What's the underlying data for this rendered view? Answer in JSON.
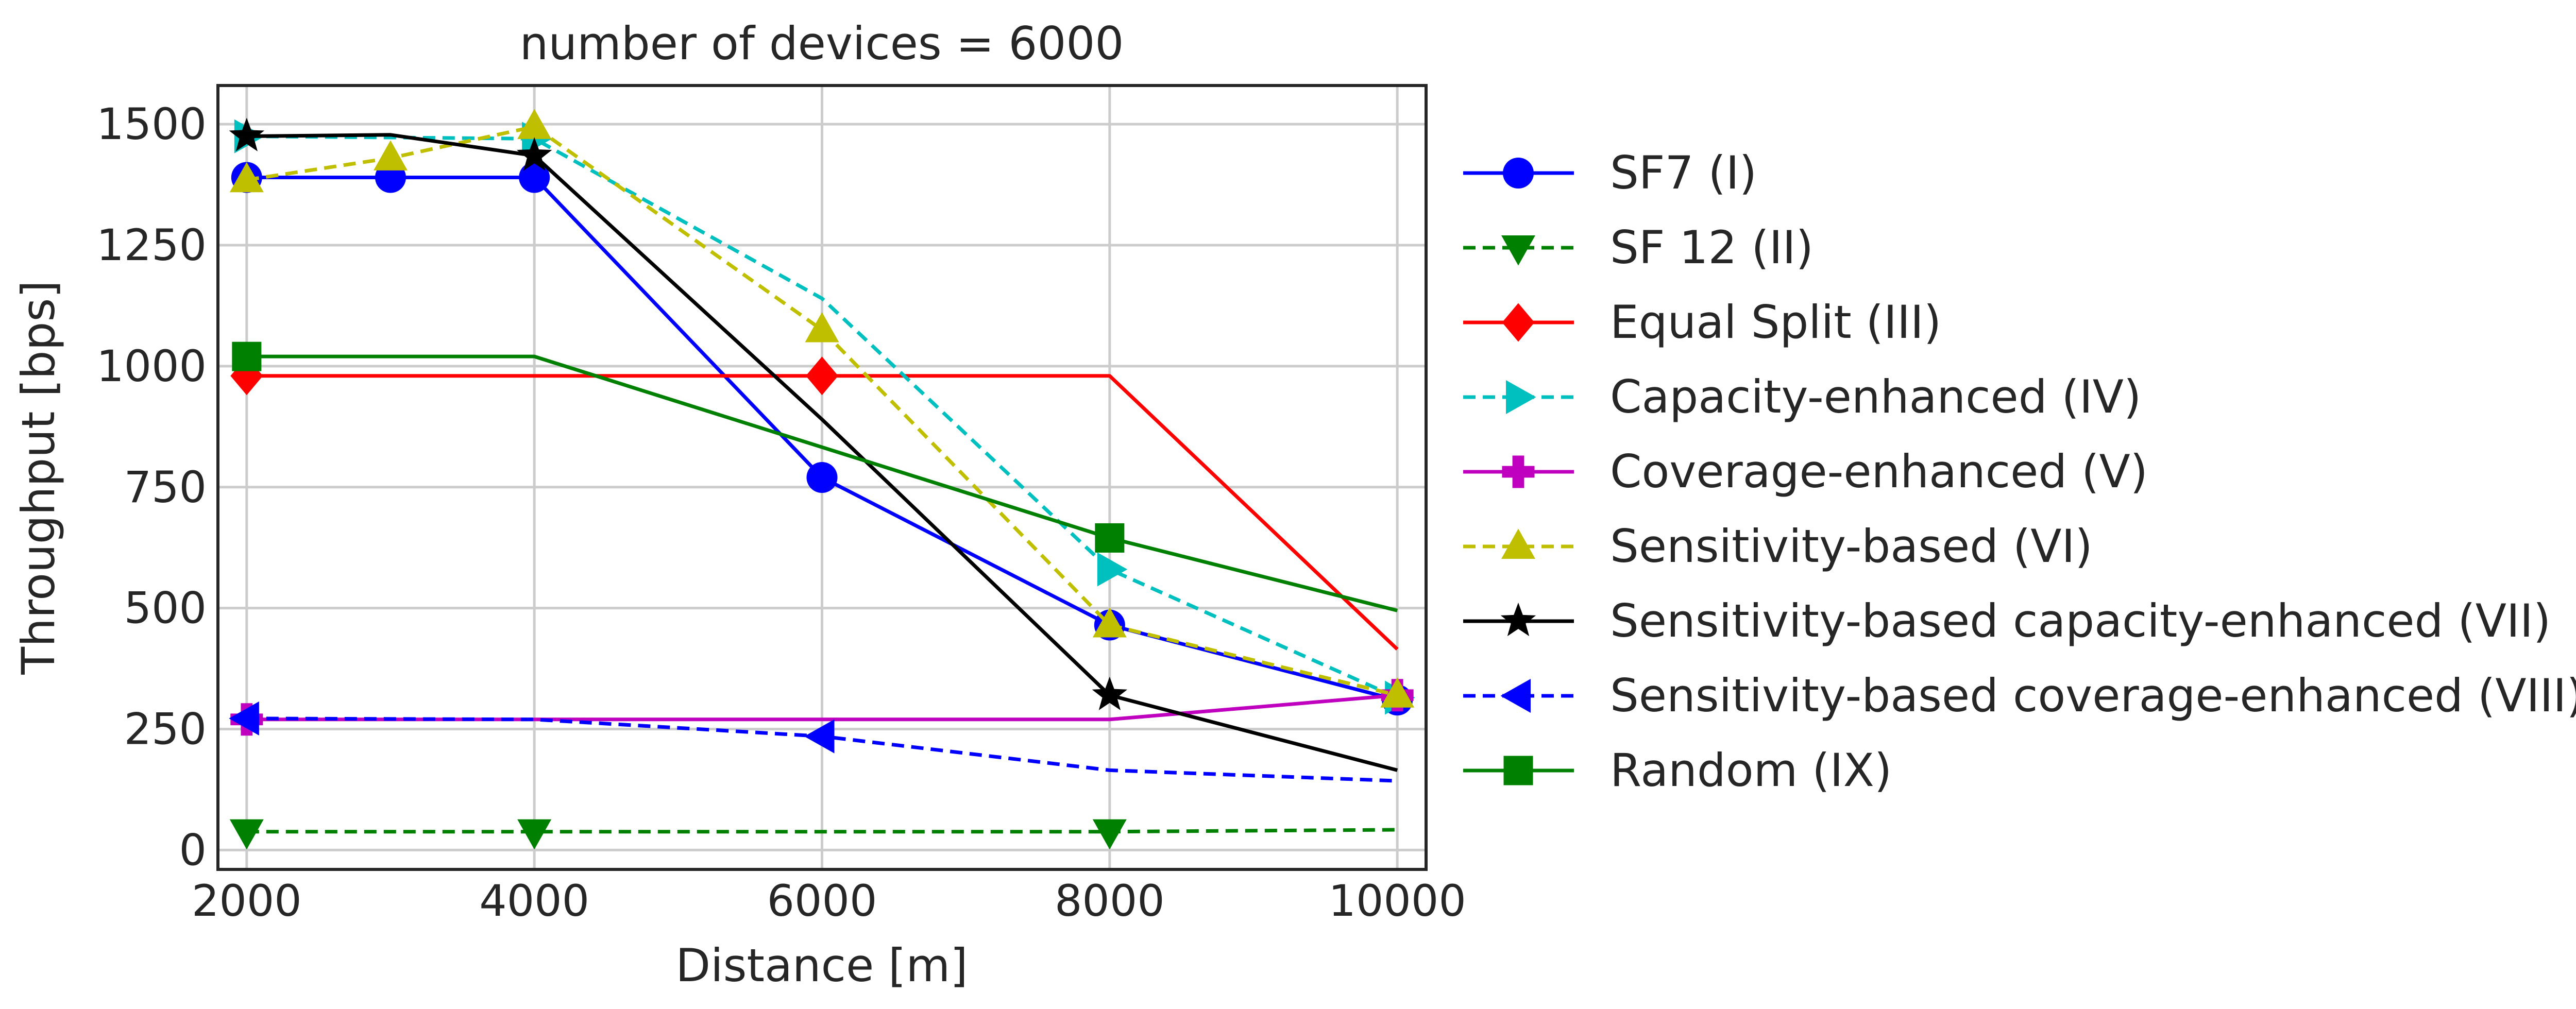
{
  "chart_data": {
    "type": "line",
    "title": "number of devices = 6000",
    "xlabel": "Distance [m]",
    "ylabel": "Throughput [bps]",
    "xlim": [
      1800,
      10200
    ],
    "ylim": [
      -40,
      1580
    ],
    "xticks": [
      2000,
      4000,
      6000,
      8000,
      10000
    ],
    "yticks": [
      0,
      250,
      500,
      750,
      1000,
      1250,
      1500
    ],
    "grid": true,
    "legend_position": "outside-right",
    "series": [
      {
        "name": "SF7 (I)",
        "color": "#0000ff",
        "dash": "solid",
        "marker": "circle",
        "points": [
          [
            2000,
            1390
          ],
          [
            3000,
            1390
          ],
          [
            4000,
            1390
          ],
          [
            6000,
            770
          ],
          [
            8000,
            465
          ],
          [
            10000,
            310
          ]
        ]
      },
      {
        "name": "SF 12 (II)",
        "color": "#008000",
        "dash": "dashed",
        "marker": "triangle-down",
        "points": [
          [
            2000,
            38
          ],
          [
            4000,
            38
          ],
          [
            8000,
            38
          ],
          [
            10000,
            42
          ]
        ]
      },
      {
        "name": "Equal Split (III)",
        "color": "#ff0000",
        "dash": "solid",
        "marker": "diamond",
        "points": [
          [
            2000,
            980
          ],
          [
            4000,
            980
          ],
          [
            6000,
            980
          ],
          [
            8000,
            980
          ],
          [
            10000,
            415
          ]
        ]
      },
      {
        "name": "Capacity-enhanced (IV)",
        "color": "#00bfbf",
        "dash": "dashed",
        "marker": "triangle-right",
        "points": [
          [
            2000,
            1475
          ],
          [
            4000,
            1470
          ],
          [
            6000,
            1140
          ],
          [
            8000,
            580
          ],
          [
            10000,
            315
          ]
        ]
      },
      {
        "name": "Coverage-enhanced (V)",
        "color": "#bf00bf",
        "dash": "solid",
        "marker": "plus",
        "points": [
          [
            2000,
            270
          ],
          [
            6000,
            270
          ],
          [
            8000,
            270
          ],
          [
            10000,
            320
          ]
        ]
      },
      {
        "name": "Sensitivity-based (VI)",
        "color": "#bfbf00",
        "dash": "dashed",
        "marker": "triangle-up",
        "points": [
          [
            2000,
            1385
          ],
          [
            3000,
            1430
          ],
          [
            4000,
            1495
          ],
          [
            6000,
            1075
          ],
          [
            8000,
            465
          ],
          [
            10000,
            320
          ]
        ]
      },
      {
        "name": "Sensitivity-based capacity-enhanced (VII)",
        "color": "#000000",
        "dash": "solid",
        "marker": "star",
        "points": [
          [
            2000,
            1475
          ],
          [
            3000,
            1478
          ],
          [
            4000,
            1435
          ],
          [
            6000,
            890
          ],
          [
            8000,
            320
          ],
          [
            10000,
            165
          ]
        ]
      },
      {
        "name": "Sensitivity-based coverage-enhanced (VIII)",
        "color": "#0000ff",
        "dash": "dashed",
        "marker": "triangle-left",
        "points": [
          [
            2000,
            272
          ],
          [
            4000,
            270
          ],
          [
            6000,
            235
          ],
          [
            8000,
            165
          ],
          [
            10000,
            143
          ]
        ]
      },
      {
        "name": "Random (IX)",
        "color": "#008000",
        "dash": "solid",
        "marker": "square",
        "points": [
          [
            2000,
            1020
          ],
          [
            4000,
            1020
          ],
          [
            8000,
            645
          ],
          [
            10000,
            495
          ]
        ]
      }
    ],
    "markers_shown": {
      "SF7 (I)": [
        2000,
        3000,
        4000,
        6000,
        8000,
        10000
      ],
      "SF 12 (II)": [
        2000,
        4000,
        8000
      ],
      "Equal Split (III)": [
        2000,
        6000
      ],
      "Capacity-enhanced (IV)": [
        2000,
        4000,
        8000,
        10000
      ],
      "Coverage-enhanced (V)": [
        2000,
        10000
      ],
      "Sensitivity-based (VI)": [
        2000,
        3000,
        4000,
        6000,
        8000,
        10000
      ],
      "Sensitivity-based capacity-enhanced (VII)": [
        2000,
        4000,
        8000
      ],
      "Sensitivity-based coverage-enhanced (VIII)": [
        2000,
        6000
      ],
      "Random (IX)": [
        2000,
        8000
      ]
    }
  }
}
